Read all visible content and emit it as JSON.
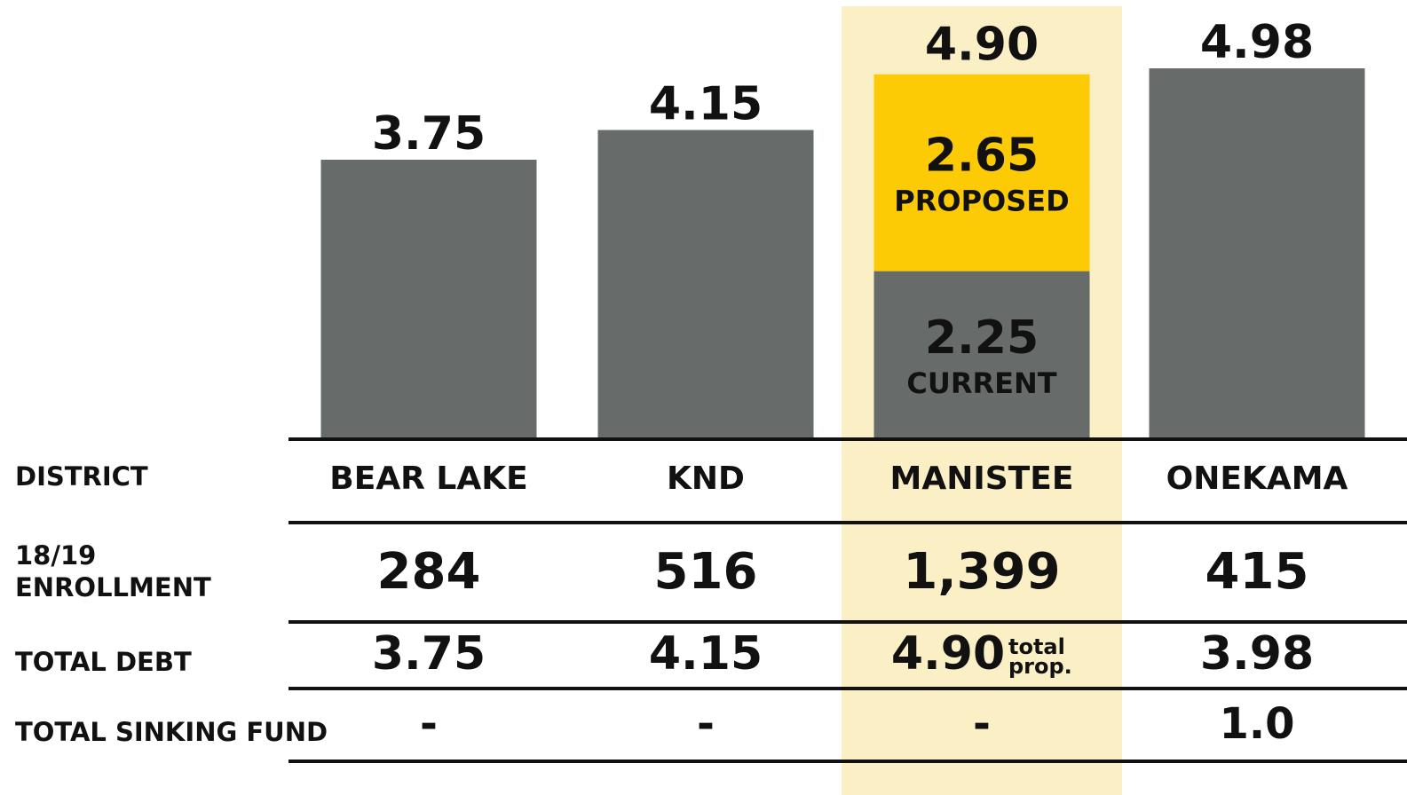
{
  "chart_data": {
    "type": "bar",
    "stacked": true,
    "categories": [
      "BEAR LAKE",
      "KND",
      "MANISTEE",
      "ONEKAMA"
    ],
    "series": [
      {
        "name": "CURRENT",
        "color": "#676c6b",
        "values": [
          3.75,
          4.15,
          2.25,
          4.98
        ]
      },
      {
        "name": "PROPOSED",
        "color": "#fdca06",
        "values": [
          null,
          null,
          2.65,
          null
        ]
      }
    ],
    "total_labels": [
      null,
      null,
      "4.90",
      null
    ],
    "ylim": [
      0,
      5.9
    ],
    "highlight_category": 2,
    "highlight_color": "#fbefc5",
    "table": {
      "header": "DISTRICT",
      "rows": [
        {
          "label": [
            "18/19",
            "ENROLLMENT"
          ],
          "values": [
            "284",
            "516",
            "1,399",
            "415"
          ]
        },
        {
          "label": [
            "TOTAL DEBT"
          ],
          "values": [
            "3.75",
            "4.15",
            "4.90",
            "3.98"
          ],
          "note": {
            "column": 2,
            "lines": [
              "total",
              "prop."
            ]
          }
        },
        {
          "label": [
            "TOTAL SINKING FUND"
          ],
          "values": [
            "-",
            "-",
            "-",
            "1.0"
          ]
        }
      ]
    }
  }
}
